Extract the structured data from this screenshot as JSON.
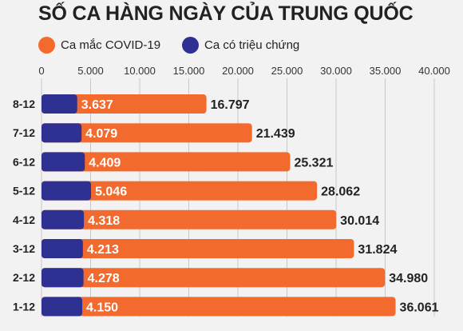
{
  "colors": {
    "orange": "#f26a2e",
    "navy": "#2e3192",
    "background": "#f2f2f2",
    "grid": "#c8c8c8",
    "text": "#222222"
  },
  "chart_data": {
    "type": "bar",
    "orientation": "horizontal",
    "title": "SỐ CA HÀNG NGÀY CỦA TRUNG QUỐC",
    "categories": [
      "8-12",
      "7-12",
      "6-12",
      "5-12",
      "4-12",
      "3-12",
      "2-12",
      "1-12"
    ],
    "series": [
      {
        "name": "Ca mắc COVID-19",
        "color": "#f26a2e",
        "values": [
          16797,
          21439,
          25321,
          28062,
          30014,
          31824,
          34980,
          36061
        ],
        "labels": [
          "16.797",
          "21.439",
          "25.321",
          "28.062",
          "30.014",
          "31.824",
          "34.980",
          "36.061"
        ]
      },
      {
        "name": "Ca có triệu chứng",
        "color": "#2e3192",
        "values": [
          3637,
          4079,
          4409,
          5046,
          4318,
          4213,
          4278,
          4150
        ],
        "labels": [
          "3.637",
          "4.079",
          "4.409",
          "5.046",
          "4.318",
          "4.213",
          "4.278",
          "4.150"
        ]
      }
    ],
    "xlim": [
      0,
      40000
    ],
    "xticks": [
      0,
      5000,
      10000,
      15000,
      20000,
      25000,
      30000,
      35000,
      40000
    ],
    "xtick_labels": [
      "0",
      "5.000",
      "10.000",
      "15.000",
      "20.000",
      "25.000",
      "30.000",
      "35.000",
      "40.000"
    ],
    "grid": true,
    "axis_position": "top",
    "legend_position": "top-left",
    "overlap": true
  }
}
